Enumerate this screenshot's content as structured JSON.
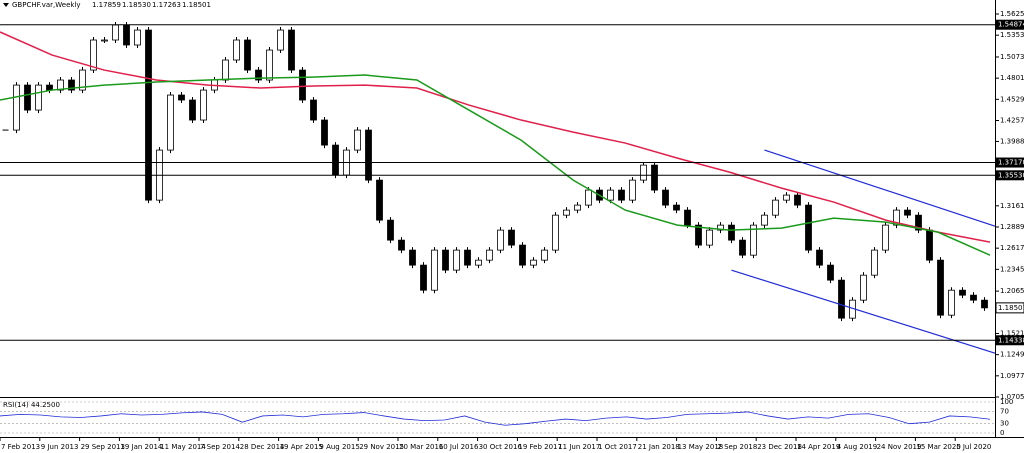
{
  "chart_data": {
    "type": "candlestick",
    "title": "GBPCHF.var,Weekly",
    "ohlc": [
      "1.17859",
      "1.18530",
      "1.17263",
      "1.18501"
    ],
    "close": [
      1.4134,
      1.4712,
      1.4391,
      1.4712,
      1.4648,
      1.4777,
      1.4648,
      1.4905,
      1.5291,
      1.5291,
      1.5484,
      1.5227,
      1.5419,
      1.3234,
      1.3877,
      1.4584,
      1.452,
      1.4263,
      1.4648,
      1.4777,
      1.5034,
      1.5291,
      1.4905,
      1.4777,
      1.5162,
      1.5419,
      1.4905,
      1.452,
      1.4263,
      1.3941,
      1.3556,
      1.3877,
      1.4134,
      1.3491,
      1.2977,
      1.272,
      1.2592,
      1.2399,
      1.2077,
      1.2592,
      1.2335,
      1.2592,
      1.2399,
      1.2463,
      1.2592,
      1.2849,
      1.2656,
      1.2399,
      1.2463,
      1.2592,
      1.3041,
      1.3106,
      1.317,
      1.3363,
      1.3234,
      1.3363,
      1.3234,
      1.3491,
      1.3684,
      1.3363,
      1.317,
      1.3106,
      1.2913,
      1.2656,
      1.2849,
      1.2913,
      1.272,
      1.2527,
      1.2913,
      1.3041,
      1.3234,
      1.3299,
      1.317,
      1.2592,
      1.2399,
      1.2206,
      1.1718,
      1.1949,
      1.227,
      1.2592,
      1.2913,
      1.3106,
      1.3041,
      1.2849,
      1.2463,
      1.1756,
      1.2077,
      1.2013,
      1.1949,
      1.185
    ],
    "color": "#000000",
    "ma": [
      {
        "color": "#e0204a",
        "values": [
          1.5394,
          1.5098,
          1.4905,
          1.4777,
          1.4712,
          1.4674,
          1.47,
          1.4712,
          1.4674,
          1.4455,
          1.4263,
          1.4108,
          1.3967,
          1.3774,
          1.3594,
          1.3388,
          1.3209,
          1.2977,
          1.2823,
          1.2694
        ]
      },
      {
        "color": "#1a9a1a",
        "values": [
          1.452,
          1.4648,
          1.4712,
          1.4751,
          1.4777,
          1.4802,
          1.4815,
          1.4841,
          1.4777,
          1.4391,
          1.4005,
          1.3491,
          1.3106,
          1.2913,
          1.2849,
          1.2874,
          1.3003,
          1.2952,
          1.2823,
          1.2527
        ]
      }
    ],
    "trendlines": [
      {
        "color": "#1f2bd6",
        "start_index": 69,
        "start": 1.3877,
        "end": 1.29
      },
      {
        "color": "#1f2bd6",
        "start_index": 66,
        "start": 1.2334,
        "end": 1.1268
      }
    ],
    "levels": [
      1.54874,
      {
        "value": 1.3717,
        "label": "1.37170"
      },
      {
        "value": 1.3553,
        "label": "1.35530"
      },
      1.14338
    ],
    "current": 1.18501,
    "ylim": [
      1.0705,
      1.5805
    ],
    "yticks": [
      {
        "value": 1.5625,
        "label": "1.56250"
      },
      {
        "value": 1.5353,
        "label": "1.53530"
      },
      1.5073,
      1.4801,
      1.4529,
      1.4257,
      1.3988,
      1.3161,
      1.2889,
      1.2617,
      1.2345,
      1.2065,
      {
        "value": 1.1521,
        "label": "1.15210"
      },
      1.1249,
      1.0977,
      1.0705
    ],
    "categories": [
      "7 Feb 2013",
      "9 Jun 2013",
      "29 Sep 2013",
      "19 Jan 2014",
      "11 May 2014",
      "7 Sep 2014",
      "28 Dec 2014",
      "19 Apr 2015",
      "9 Aug 2015",
      "29 Nov 2015",
      "20 Mar 2016",
      "10 Jul 2016",
      "30 Oct 2016",
      "19 Feb 2017",
      "11 Jun 2017",
      "1 Oct 2017",
      "21 Jan 2018",
      "13 May 2018",
      "2 Sep 2018",
      "23 Dec 2018",
      "14 Apr 2019",
      "4 Aug 2019",
      "24 Nov 2019",
      "15 Mar 2020",
      "5 Jul 2020"
    ],
    "rsi": {
      "title": "RSI(14) 44.2500",
      "color": "#1f2bd6",
      "values": [
        55,
        60,
        58,
        52,
        50,
        55,
        62,
        58,
        60,
        65,
        68,
        60,
        35,
        55,
        58,
        52,
        60,
        62,
        66,
        55,
        45,
        40,
        42,
        55,
        35,
        25,
        30,
        38,
        45,
        40,
        48,
        52,
        45,
        50,
        60,
        62,
        64,
        68,
        55,
        45,
        52,
        48,
        60,
        62,
        50,
        30,
        35,
        55,
        52,
        44.25
      ],
      "ylim": [
        0,
        100
      ],
      "yticks": [
        100,
        70,
        30,
        0
      ]
    }
  }
}
